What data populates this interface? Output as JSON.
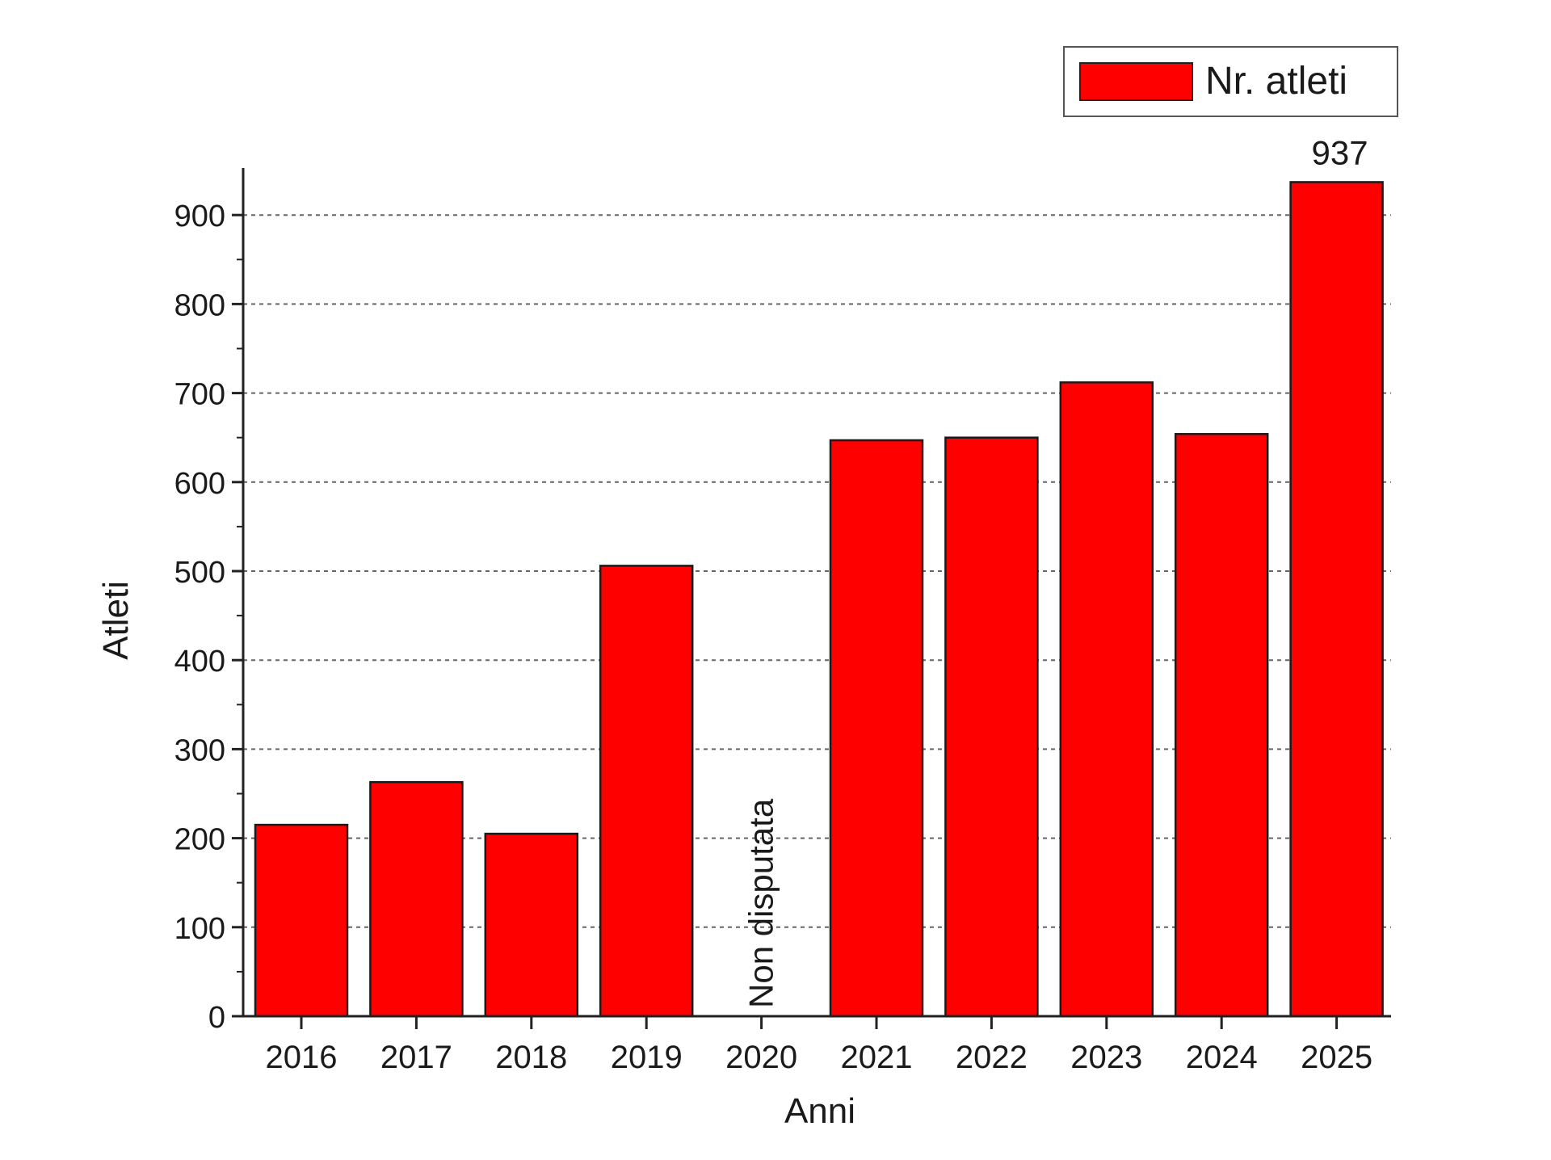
{
  "chart_data": {
    "type": "bar",
    "categories": [
      "2016",
      "2017",
      "2018",
      "2019",
      "2020",
      "2021",
      "2022",
      "2023",
      "2024",
      "2025"
    ],
    "series": [
      {
        "name": "Nr. atleti",
        "values": [
          215,
          263,
          205,
          506,
          null,
          647,
          650,
          712,
          654,
          937
        ]
      }
    ],
    "title": "",
    "xlabel": "Anni",
    "ylabel": "Atleti",
    "ylim": [
      0,
      950
    ],
    "yticks": [
      0,
      100,
      200,
      300,
      400,
      500,
      600,
      700,
      800,
      900
    ],
    "grid": "horizontal dashed",
    "legend_position": "top-right",
    "bar_color": "#ff0000",
    "annotations": [
      {
        "category": "2025",
        "text": "937"
      },
      {
        "category": "2020",
        "text": "Non disputata"
      }
    ]
  }
}
